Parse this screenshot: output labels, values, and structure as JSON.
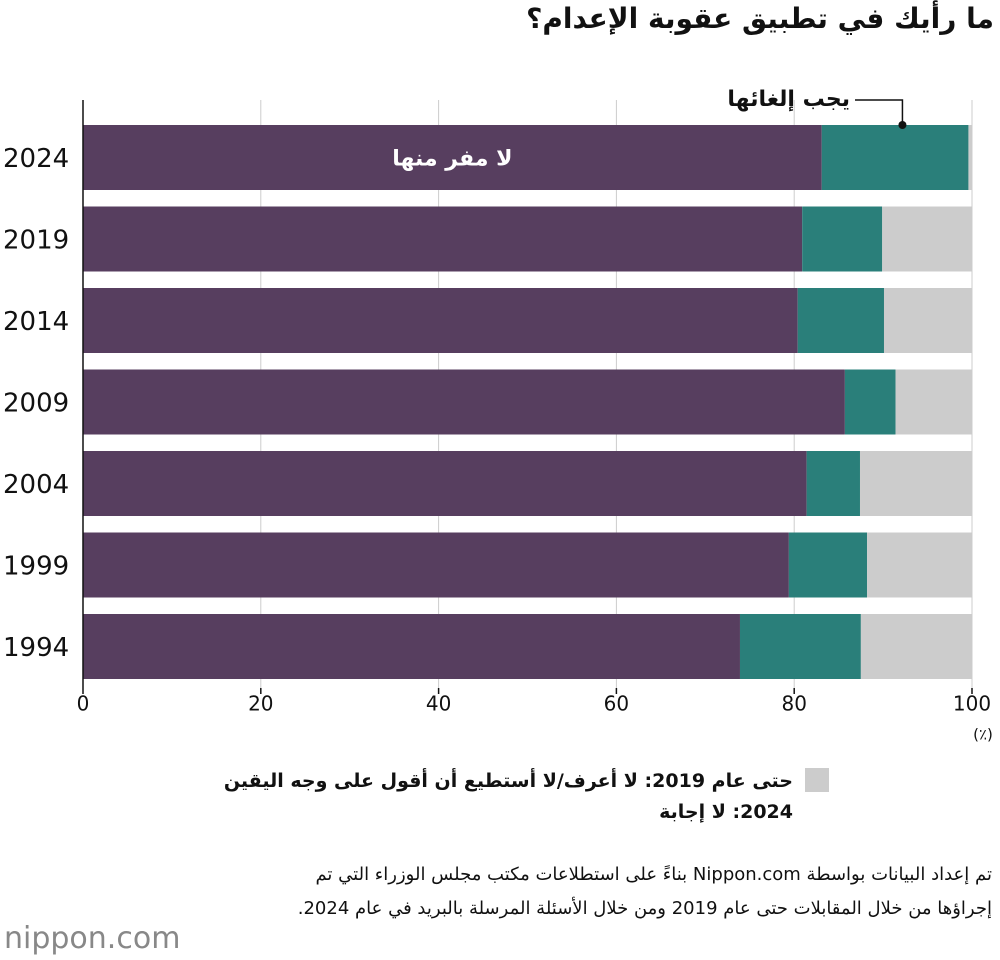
{
  "chart_data": {
    "type": "stacked_barh",
    "title": "ما رأيك في تطبيق عقوبة الإعدام؟",
    "categories": [
      "2024",
      "2019",
      "2014",
      "2009",
      "2004",
      "1999",
      "1994"
    ],
    "series": [
      {
        "name": "لا مفر منها",
        "color": "#573e5f",
        "values": [
          83.1,
          80.9,
          80.4,
          85.7,
          81.4,
          79.4,
          73.9
        ]
      },
      {
        "name": "يجب إلغائها",
        "color": "#2a7f7a",
        "values": [
          16.5,
          9.0,
          9.7,
          5.7,
          6.0,
          8.8,
          13.6
        ]
      },
      {
        "name": "حتى عام 2019: لا أعرف/لا أستطيع أن أقول على وجه اليقين",
        "color": "#cccccc",
        "values": [
          0.4,
          10.1,
          9.9,
          8.6,
          12.6,
          11.8,
          12.5
        ]
      }
    ],
    "legend_note": "2024: لا إجابة",
    "x_unit": "(٪)",
    "xlim": [
      0,
      100
    ],
    "xticks": [
      0,
      20,
      40,
      60,
      80,
      100
    ],
    "grid": true,
    "source": "تم إعداد البيانات بواسطة Nippon.com بناءً على استطلاعات مكتب مجلس الوزراء التي تم إجراؤها من خلال المقابلات حتى عام 2019 ومن خلال الأسئلة المرسلة بالبريد في عام 2024.",
    "logo": "nippon.com"
  }
}
